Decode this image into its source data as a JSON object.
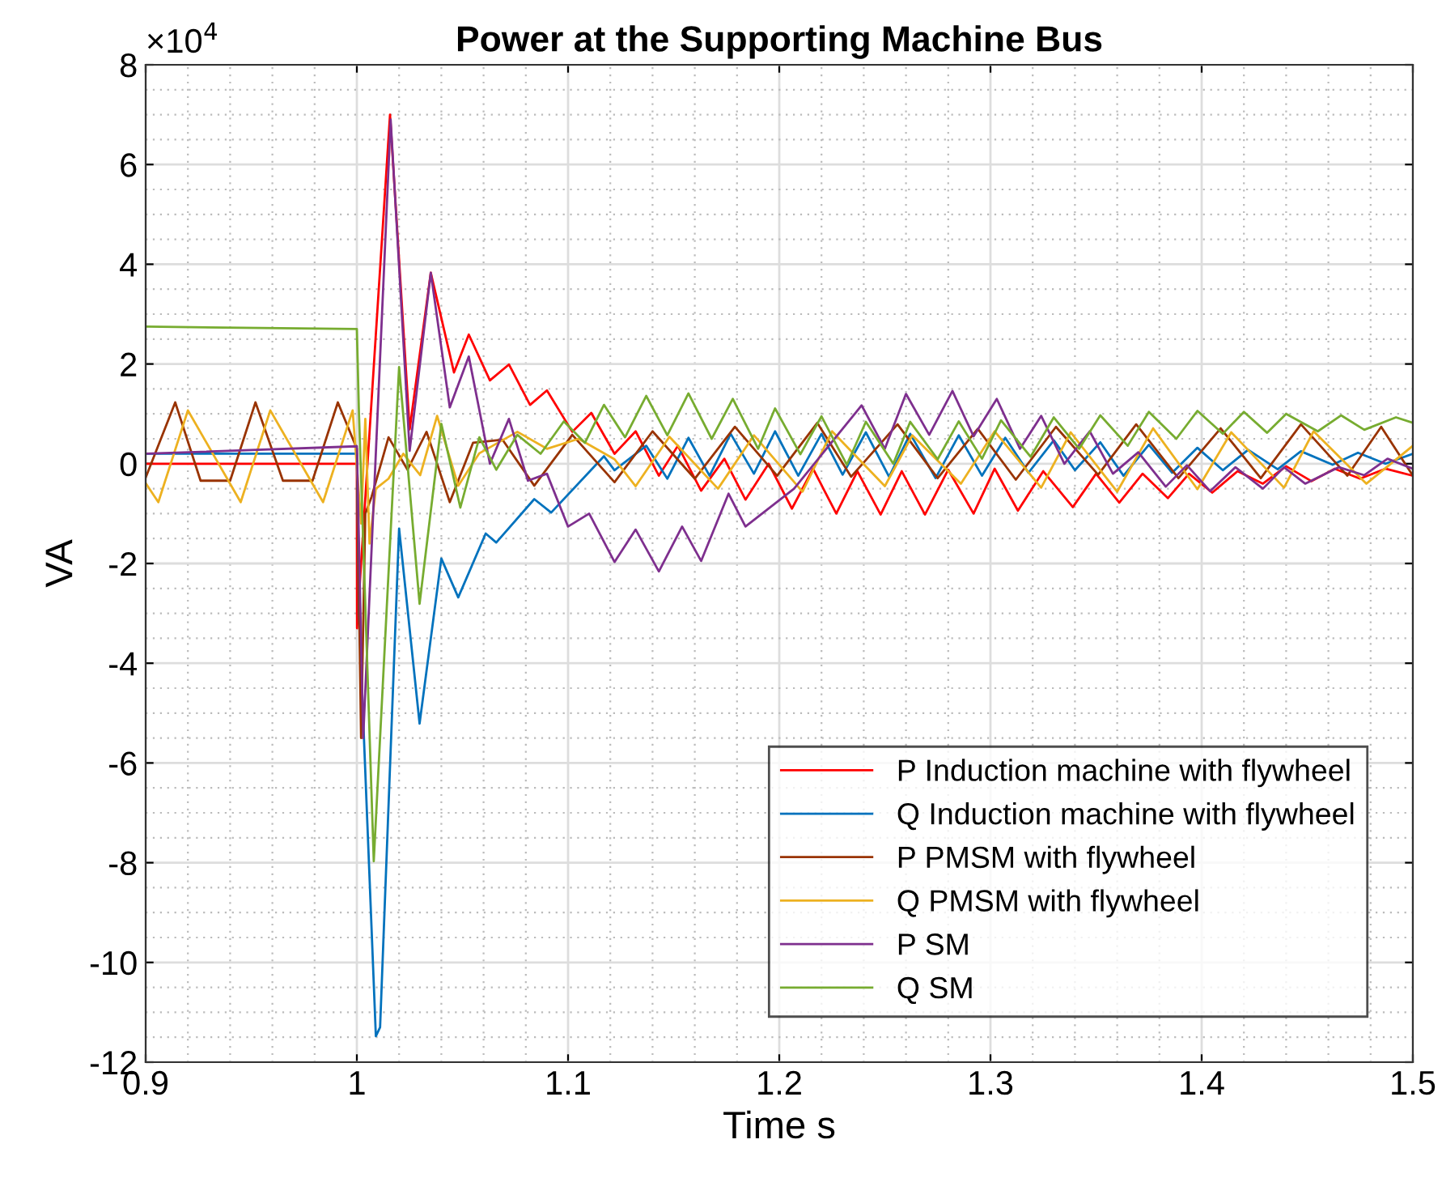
{
  "chart_data": {
    "type": "line",
    "title": "Power at the Supporting Machine Bus",
    "xlabel": "Time s",
    "ylabel": "VA",
    "annotations": [
      "×10$^{4}$"
    ],
    "xlim": [
      0.9,
      1.5
    ],
    "xticks": [
      0.9,
      1,
      1.1,
      1.2,
      1.3,
      1.4,
      1.5
    ],
    "ylim": [
      -12,
      8
    ],
    "yticks": [
      -12,
      -10,
      -8,
      -6,
      -4,
      -2,
      0,
      2,
      4,
      6,
      8
    ],
    "grid": true,
    "legend": "bottom right",
    "marker": "none",
    "line_style": "solid",
    "series": [
      {
        "name": "P Induction machine with flywheel",
        "color": "#ff0000",
        "x": [
          0.9,
          1.0,
          1.0001,
          1.002,
          1.0157,
          1.025,
          1.035,
          1.046,
          1.053,
          1.063,
          1.072,
          1.082,
          1.09,
          1.102,
          1.111,
          1.122,
          1.132,
          1.143,
          1.152,
          1.163,
          1.174,
          1.184,
          1.195,
          1.206,
          1.216,
          1.227,
          1.237,
          1.248,
          1.258,
          1.269,
          1.28,
          1.292,
          1.302,
          1.313,
          1.325,
          1.339,
          1.35,
          1.361,
          1.372,
          1.384,
          1.394,
          1.405,
          1.417,
          1.429,
          1.44,
          1.452,
          1.463,
          1.475,
          1.487,
          1.5
        ],
        "values": [
          0,
          0,
          -3.3,
          -2.0,
          7.0,
          0.69,
          3.83,
          1.83,
          2.59,
          1.67,
          1.99,
          1.18,
          1.47,
          0.64,
          1.02,
          0.2,
          0.65,
          -0.24,
          0.36,
          -0.54,
          0.1,
          -0.72,
          0.0,
          -0.9,
          -0.1,
          -1.0,
          -0.15,
          -1.02,
          -0.15,
          -1.02,
          -0.12,
          -1.0,
          -0.1,
          -0.94,
          -0.15,
          -0.87,
          -0.2,
          -0.78,
          -0.2,
          -0.69,
          -0.2,
          -0.58,
          -0.15,
          -0.4,
          -0.05,
          -0.35,
          -0.1,
          -0.3,
          -0.1,
          -0.24
        ]
      },
      {
        "name": "Q Induction machine with flywheel",
        "color": "#0072bd",
        "x": [
          0.9,
          1.0,
          1.001,
          1.009,
          1.011,
          1.02,
          1.0297,
          1.04,
          1.048,
          1.061,
          1.066,
          1.084,
          1.092,
          1.117,
          1.122,
          1.137,
          1.147,
          1.157,
          1.167,
          1.177,
          1.188,
          1.198,
          1.209,
          1.22,
          1.23,
          1.241,
          1.252,
          1.262,
          1.274,
          1.285,
          1.296,
          1.307,
          1.318,
          1.33,
          1.34,
          1.352,
          1.363,
          1.375,
          1.386,
          1.398,
          1.41,
          1.422,
          1.436,
          1.447,
          1.462,
          1.474,
          1.487,
          1.5
        ],
        "values": [
          0.2,
          0.2,
          -3,
          -11.48,
          -11.3,
          -1.3,
          -5.21,
          -1.9,
          -2.68,
          -1.4,
          -1.58,
          -0.71,
          -0.98,
          0.15,
          -0.13,
          0.36,
          -0.3,
          0.52,
          -0.24,
          0.6,
          -0.2,
          0.65,
          -0.24,
          0.6,
          -0.22,
          0.63,
          -0.26,
          0.6,
          -0.29,
          0.57,
          -0.24,
          0.52,
          -0.18,
          0.47,
          -0.13,
          0.43,
          -0.24,
          0.38,
          -0.18,
          0.32,
          -0.13,
          0.28,
          -0.11,
          0.25,
          -0.02,
          0.22,
          0.0,
          0.2
        ]
      },
      {
        "name": "P PMSM with flywheel",
        "color": "#993300",
        "x": [
          0.9,
          0.914,
          0.926,
          0.94,
          0.952,
          0.965,
          0.979,
          0.991,
          1.0,
          1.002,
          1.004,
          1.007,
          1.015,
          1.024,
          1.033,
          1.044,
          1.055,
          1.069,
          1.084,
          1.102,
          1.122,
          1.14,
          1.16,
          1.179,
          1.199,
          1.218,
          1.234,
          1.256,
          1.275,
          1.294,
          1.312,
          1.331,
          1.351,
          1.369,
          1.389,
          1.409,
          1.428,
          1.447,
          1.469,
          1.485,
          1.5
        ],
        "values": [
          -0.28,
          1.23,
          -0.34,
          -0.34,
          1.23,
          -0.34,
          -0.34,
          1.23,
          0.3,
          -5.5,
          -1.0,
          -0.66,
          0.53,
          -0.12,
          0.64,
          -0.77,
          0.42,
          0.48,
          -0.44,
          0.58,
          -0.37,
          0.65,
          -0.3,
          0.74,
          -0.24,
          0.82,
          -0.26,
          0.79,
          -0.29,
          0.7,
          -0.32,
          0.74,
          -0.22,
          0.79,
          -0.29,
          0.71,
          -0.29,
          0.79,
          -0.24,
          0.74,
          -0.24
        ]
      },
      {
        "name": "Q PMSM with flywheel",
        "color": "#edb120",
        "x": [
          0.9,
          0.906,
          0.92,
          0.945,
          0.959,
          0.984,
          0.998,
          1.002,
          1.004,
          1.006,
          1.009,
          1.015,
          1.022,
          1.03,
          1.038,
          1.048,
          1.058,
          1.076,
          1.09,
          1.105,
          1.122,
          1.132,
          1.148,
          1.171,
          1.188,
          1.211,
          1.225,
          1.25,
          1.263,
          1.286,
          1.302,
          1.324,
          1.338,
          1.36,
          1.377,
          1.398,
          1.414,
          1.439,
          1.453,
          1.478,
          1.5
        ],
        "values": [
          -0.39,
          -0.77,
          1.07,
          -0.77,
          1.07,
          -0.77,
          1.07,
          -1.2,
          0.9,
          -1.6,
          -0.5,
          -0.3,
          0.2,
          -0.23,
          0.96,
          -0.44,
          0.21,
          0.64,
          0.3,
          0.5,
          0.09,
          -0.45,
          0.54,
          -0.5,
          0.57,
          -0.56,
          0.65,
          -0.45,
          0.57,
          -0.4,
          0.65,
          -0.48,
          0.63,
          -0.56,
          0.71,
          -0.51,
          0.63,
          -0.48,
          0.65,
          -0.4,
          0.36
        ]
      },
      {
        "name": "P SM",
        "color": "#7e2f8e",
        "x": [
          0.9,
          1.0,
          1.003,
          1.016,
          1.025,
          1.035,
          1.044,
          1.053,
          1.063,
          1.072,
          1.081,
          1.09,
          1.1,
          1.11,
          1.122,
          1.132,
          1.143,
          1.154,
          1.163,
          1.176,
          1.184,
          1.207,
          1.239,
          1.25,
          1.26,
          1.271,
          1.282,
          1.292,
          1.303,
          1.314,
          1.324,
          1.335,
          1.347,
          1.358,
          1.37,
          1.383,
          1.393,
          1.404,
          1.416,
          1.429,
          1.439,
          1.449,
          1.465,
          1.477,
          1.488,
          1.5
        ],
        "values": [
          0.2,
          0.35,
          -5.5,
          6.9,
          0.26,
          3.83,
          1.13,
          2.15,
          0.0,
          0.9,
          -0.34,
          -0.2,
          -1.26,
          -1.0,
          -1.97,
          -1.32,
          -2.16,
          -1.26,
          -1.95,
          -0.6,
          -1.26,
          -0.5,
          1.17,
          0.3,
          1.4,
          0.58,
          1.46,
          0.55,
          1.3,
          0.3,
          0.96,
          0.0,
          0.65,
          -0.2,
          0.23,
          -0.46,
          -0.03,
          -0.55,
          -0.07,
          -0.5,
          -0.07,
          -0.4,
          -0.07,
          -0.23,
          0.1,
          -0.1
        ]
      },
      {
        "name": "Q SM",
        "color": "#77ac30",
        "x": [
          0.9,
          1.0,
          1.001,
          1.008,
          1.02,
          1.0297,
          1.04,
          1.049,
          1.058,
          1.066,
          1.076,
          1.087,
          1.098,
          1.108,
          1.117,
          1.127,
          1.137,
          1.147,
          1.157,
          1.168,
          1.178,
          1.19,
          1.198,
          1.21,
          1.22,
          1.232,
          1.241,
          1.254,
          1.262,
          1.275,
          1.285,
          1.296,
          1.305,
          1.319,
          1.33,
          1.342,
          1.352,
          1.365,
          1.375,
          1.388,
          1.398,
          1.41,
          1.42,
          1.431,
          1.44,
          1.455,
          1.466,
          1.477,
          1.492,
          1.5
        ],
        "values": [
          2.75,
          2.7,
          1.0,
          -7.97,
          1.94,
          -2.81,
          0.8,
          -0.88,
          0.53,
          -0.12,
          0.58,
          0.2,
          0.85,
          0.42,
          1.18,
          0.53,
          1.36,
          0.57,
          1.41,
          0.5,
          1.3,
          0.3,
          1.11,
          0.19,
          0.95,
          -0.02,
          0.84,
          0.0,
          0.84,
          0.09,
          0.85,
          0.1,
          0.87,
          0.14,
          0.93,
          0.3,
          0.97,
          0.36,
          1.04,
          0.5,
          1.06,
          0.6,
          1.04,
          0.62,
          1.0,
          0.65,
          0.97,
          0.68,
          0.93,
          0.82
        ]
      }
    ]
  }
}
